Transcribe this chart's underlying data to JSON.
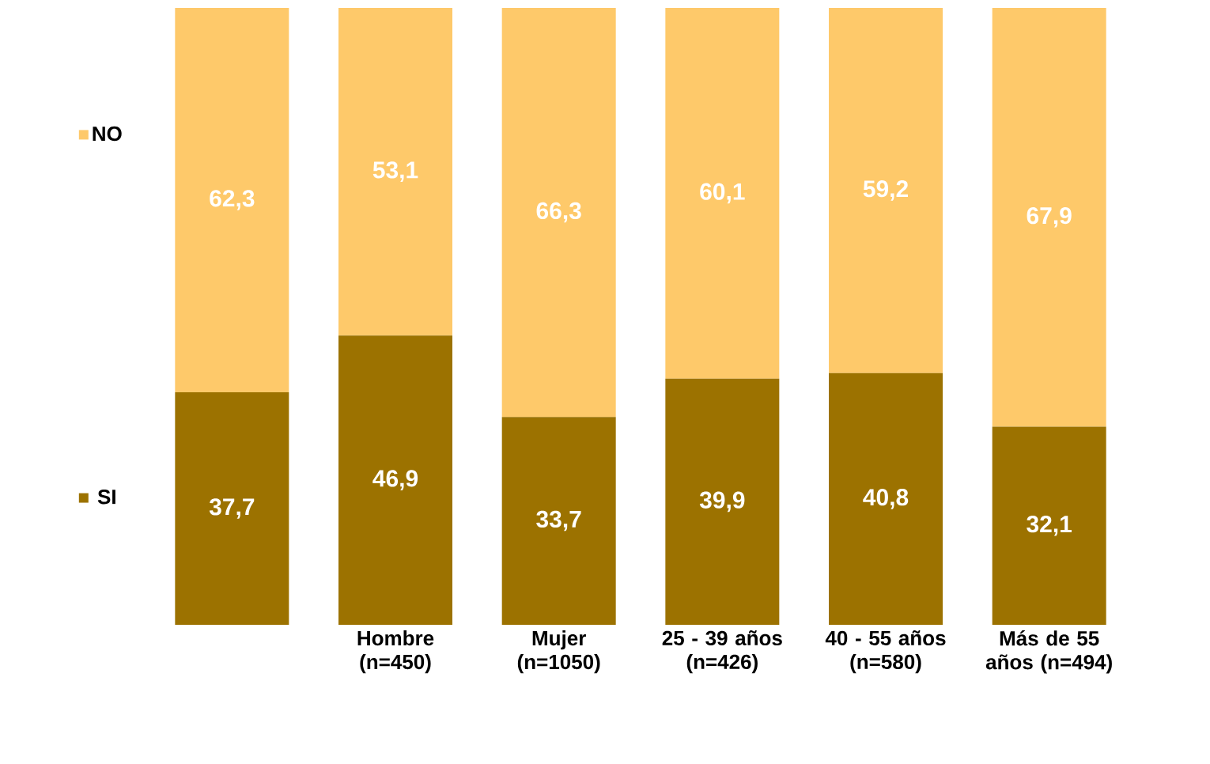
{
  "chart_data": {
    "type": "bar",
    "stacked": true,
    "categories": [
      null,
      "Hombre (n=450)",
      "Mujer (n=1050)",
      "25 - 39 años (n=426)",
      "40 - 55 años (n=580)",
      "Más de 55 años (n=494)"
    ],
    "series": [
      {
        "name": "SI",
        "color": "#9c7200",
        "values": [
          37.7,
          46.9,
          33.7,
          39.9,
          40.8,
          32.1
        ],
        "value_labels": [
          "37,7",
          "46,9",
          "33,7",
          "39,9",
          "40,8",
          "32,1"
        ]
      },
      {
        "name": "NO",
        "color": "#fec96a",
        "values": [
          62.3,
          53.1,
          66.3,
          60.1,
          59.2,
          67.9
        ],
        "value_labels": [
          "62,3",
          "53,1",
          "66,3",
          "60,1",
          "59,2",
          "67,9"
        ]
      }
    ],
    "legend": "left"
  }
}
